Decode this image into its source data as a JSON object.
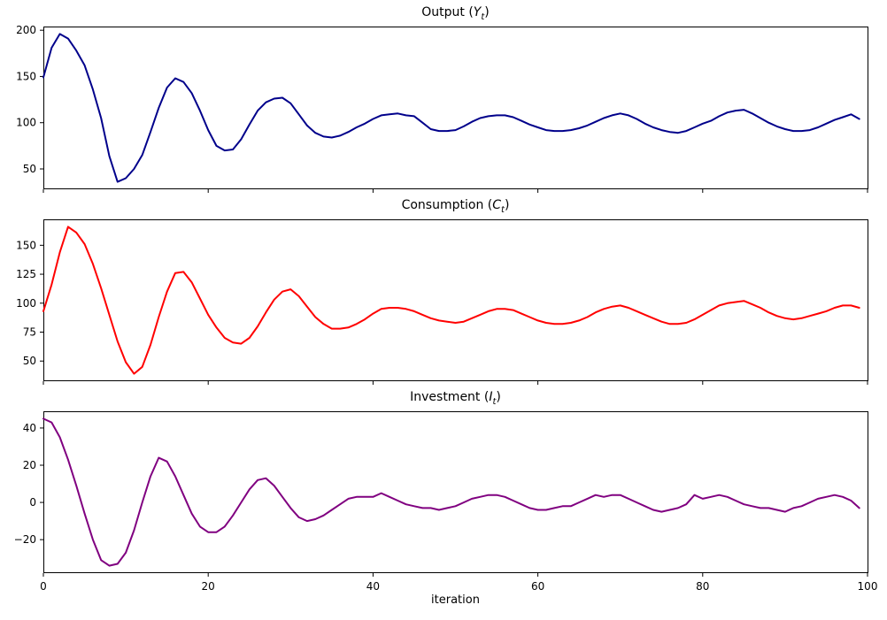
{
  "figure": {
    "background": "#ffffff",
    "axis_color": "#000000",
    "xlabel": "iteration",
    "xlim": [
      0,
      100
    ],
    "x_tick_values": [
      0,
      20,
      40,
      60,
      80,
      100
    ],
    "x_tick_labels": [
      "0",
      "20",
      "40",
      "60",
      "80",
      "100"
    ]
  },
  "chart_data": [
    {
      "type": "line",
      "title_text": "Output (Yt)",
      "title_parts": {
        "pre": "Output (",
        "var": "Y",
        "sub": "t",
        "post": ")"
      },
      "color": "#00008b",
      "xlabel": "",
      "ylabel": "",
      "x_range": [
        0,
        99
      ],
      "ylim": [
        28,
        204
      ],
      "y_tick_values": [
        50,
        100,
        150,
        200
      ],
      "y_tick_labels": [
        "50",
        "100",
        "150",
        "200"
      ],
      "grid": false,
      "legend": "none",
      "values": [
        149,
        181,
        196,
        191,
        178,
        162,
        136,
        105,
        64,
        36,
        40,
        50,
        65,
        90,
        116,
        138,
        148,
        144,
        132,
        113,
        92,
        75,
        70,
        71,
        82,
        98,
        113,
        122,
        126,
        127,
        121,
        109,
        97,
        89,
        85,
        84,
        86,
        90,
        95,
        99,
        104,
        108,
        109,
        110,
        108,
        107,
        100,
        93,
        91,
        91,
        92,
        96,
        101,
        105,
        107,
        108,
        108,
        106,
        102,
        98,
        95,
        92,
        91,
        91,
        92,
        94,
        97,
        101,
        105,
        108,
        110,
        108,
        104,
        99,
        95,
        92,
        90,
        89,
        91,
        95,
        99,
        102,
        107,
        111,
        113,
        114,
        110,
        105,
        100,
        96,
        93,
        91,
        91,
        92,
        95,
        99,
        103,
        106,
        109,
        104
      ]
    },
    {
      "type": "line",
      "title_text": "Consumption (Ct)",
      "title_parts": {
        "pre": "Consumption (",
        "var": "C",
        "sub": "t",
        "post": ")"
      },
      "color": "#ff0000",
      "xlabel": "",
      "ylabel": "",
      "x_range": [
        0,
        99
      ],
      "ylim": [
        32.6,
        172.4
      ],
      "y_tick_values": [
        50,
        75,
        100,
        125,
        150
      ],
      "y_tick_labels": [
        "50",
        "75",
        "100",
        "125",
        "150"
      ],
      "grid": false,
      "legend": "none",
      "values": [
        93,
        116,
        144,
        166,
        161,
        151,
        134,
        113,
        90,
        67,
        49,
        39,
        45,
        64,
        88,
        110,
        126,
        127,
        118,
        104,
        90,
        79,
        70,
        66,
        65,
        70,
        80,
        92,
        103,
        110,
        112,
        106,
        97,
        88,
        82,
        78,
        78,
        79,
        82,
        86,
        91,
        95,
        96,
        96,
        95,
        93,
        90,
        87,
        85,
        84,
        83,
        84,
        87,
        90,
        93,
        95,
        95,
        94,
        91,
        88,
        85,
        83,
        82,
        82,
        83,
        85,
        88,
        92,
        95,
        97,
        98,
        96,
        93,
        90,
        87,
        84,
        82,
        82,
        83,
        86,
        90,
        94,
        98,
        100,
        101,
        102,
        99,
        96,
        92,
        89,
        87,
        86,
        87,
        89,
        91,
        93,
        96,
        98,
        98,
        96
      ]
    },
    {
      "type": "line",
      "title_text": "Investment (It)",
      "title_parts": {
        "pre": "Investment (",
        "var": "I",
        "sub": "t",
        "post": ")"
      },
      "color": "#800080",
      "xlabel": "iteration",
      "ylabel": "",
      "x_range": [
        0,
        99
      ],
      "ylim": [
        -38,
        49
      ],
      "y_tick_values": [
        -20,
        0,
        20,
        40
      ],
      "y_tick_labels": [
        "−20",
        "0",
        "20",
        "40"
      ],
      "grid": false,
      "legend": "none",
      "values": [
        45,
        43,
        35,
        23,
        9,
        -6,
        -20,
        -31,
        -34,
        -33,
        -27,
        -15,
        0,
        14,
        24,
        22,
        14,
        4,
        -6,
        -13,
        -16,
        -16,
        -13,
        -7,
        0,
        7,
        12,
        13,
        9,
        3,
        -3,
        -8,
        -10,
        -9,
        -7,
        -4,
        -1,
        2,
        3,
        3,
        3,
        5,
        3,
        1,
        -1,
        -2,
        -3,
        -3,
        -4,
        -3,
        -2,
        0,
        2,
        3,
        4,
        4,
        3,
        1,
        -1,
        -3,
        -4,
        -4,
        -3,
        -2,
        -2,
        0,
        2,
        4,
        3,
        4,
        4,
        2,
        0,
        -2,
        -4,
        -5,
        -4,
        -3,
        -1,
        4,
        2,
        3,
        4,
        3,
        1,
        -1,
        -2,
        -3,
        -3,
        -4,
        -5,
        -3,
        -2,
        0,
        2,
        3,
        4,
        3,
        1,
        -3
      ]
    }
  ]
}
